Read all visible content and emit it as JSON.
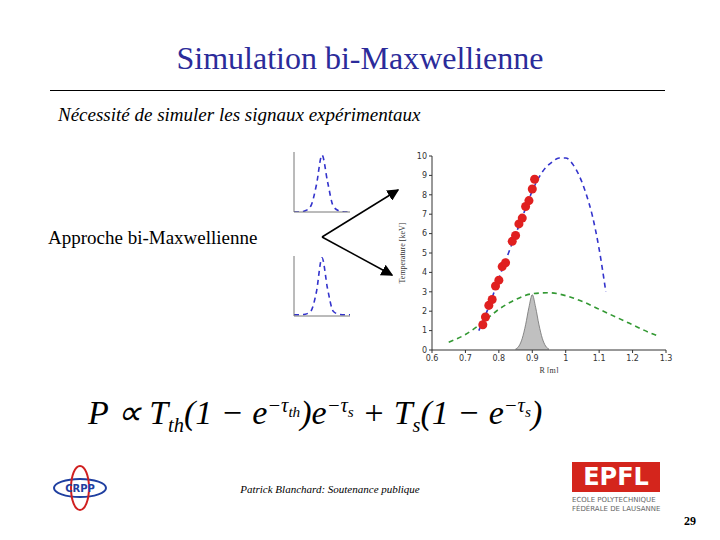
{
  "slide": {
    "title": "Simulation bi-Maxwellienne",
    "subtitle": "Nécessité de simuler les signaux expérimentaux",
    "label": "Approche bi-Maxwellienne",
    "formula": [
      {
        "base": "P ∝ T"
      },
      {
        "sub": "th"
      },
      {
        "base": "(1 − e"
      },
      {
        "sup": "−τ",
        "sup_sub": "th"
      },
      {
        "base": ")e"
      },
      {
        "sup": "−τ",
        "sup_sub": "s"
      },
      {
        "base": " + T"
      },
      {
        "sub": "s"
      },
      {
        "base": "(1 − e"
      },
      {
        "sup": "−τ",
        "sup_sub": "s"
      },
      {
        "base": ")"
      }
    ],
    "footer": "Patrick Blanchard: Soutenance publique",
    "page": "29",
    "logo_left": "CRPP",
    "logo_right": [
      "EPFL",
      "ECOLE POLYTECHNIQUE",
      "FÉDÉRALE DE LAUSANNE"
    ]
  },
  "chart_data": [
    {
      "type": "line",
      "x_label": "R [m]",
      "y_label": "Temperature [keV]",
      "xlim": [
        0.6,
        1.3
      ],
      "xticks": [
        0.6,
        0.7,
        0.8,
        0.9,
        1,
        1.1,
        1.2,
        1.3
      ],
      "ylim": [
        0,
        10
      ],
      "yticks": [
        0,
        1,
        2,
        3,
        4,
        5,
        6,
        7,
        8,
        9,
        10
      ],
      "series": [
        {
          "type": "area",
          "color": "#b0b0b0",
          "x": [
            0.85,
            0.86,
            0.87,
            0.88,
            0.89,
            0.9,
            0.91,
            0.92,
            0.93,
            0.94,
            0.95
          ],
          "values": [
            0.05,
            0.2,
            0.6,
            1.3,
            2.2,
            2.85,
            2.2,
            1.3,
            0.6,
            0.2,
            0.05
          ]
        },
        {
          "type": "line",
          "color": "#339933",
          "line_style": "dashed",
          "x": [
            0.65,
            0.7,
            0.75,
            0.8,
            0.85,
            0.9,
            0.95,
            1.0,
            1.05,
            1.1,
            1.15,
            1.2,
            1.25,
            1.28
          ],
          "values": [
            0.4,
            0.8,
            1.4,
            2.1,
            2.6,
            2.9,
            2.95,
            2.8,
            2.5,
            2.1,
            1.7,
            1.3,
            0.9,
            0.7
          ]
        },
        {
          "type": "line",
          "color": "#3333cc",
          "line_style": "dashed",
          "x": [
            0.74,
            0.76,
            0.78,
            0.8,
            0.82,
            0.84,
            0.86,
            0.88,
            0.9,
            0.92,
            0.94,
            0.96,
            0.98,
            1.0,
            1.02,
            1.04,
            1.06,
            1.08,
            1.1,
            1.12
          ],
          "values": [
            1.0,
            1.8,
            2.7,
            3.7,
            4.6,
            5.5,
            6.4,
            7.3,
            8.2,
            8.9,
            9.4,
            9.7,
            9.9,
            9.9,
            9.6,
            9.0,
            8.1,
            6.9,
            5.2,
            3.0
          ]
        },
        {
          "type": "scatter",
          "color": "#e02020",
          "marker": "circle",
          "x": [
            0.752,
            0.76,
            0.77,
            0.78,
            0.79,
            0.8,
            0.81,
            0.82,
            0.84,
            0.85,
            0.86,
            0.87,
            0.88,
            0.89,
            0.9,
            0.907
          ],
          "values": [
            1.3,
            1.7,
            2.3,
            2.6,
            3.3,
            3.6,
            4.3,
            4.5,
            5.6,
            5.9,
            6.5,
            6.8,
            7.4,
            7.7,
            8.3,
            8.8
          ]
        }
      ]
    },
    {
      "type": "line",
      "tick_labels": false,
      "xlim": [
        0,
        10
      ],
      "ylim": [
        0,
        1
      ],
      "series": [
        {
          "type": "line",
          "color": "#3333cc",
          "line_style": "dashed",
          "x": [
            0,
            1,
            2,
            3,
            4,
            5,
            6,
            7,
            8,
            9,
            10
          ],
          "values": [
            0,
            0,
            0.02,
            0.1,
            0.45,
            0.95,
            0.5,
            0.1,
            0.02,
            0,
            0
          ]
        }
      ]
    },
    {
      "type": "line",
      "tick_labels": false,
      "xlim": [
        0,
        10
      ],
      "ylim": [
        0,
        1
      ],
      "series": [
        {
          "type": "line",
          "color": "#3333cc",
          "line_style": "dashed",
          "x": [
            0,
            1,
            2,
            3,
            4,
            5,
            6,
            7,
            8,
            9,
            10
          ],
          "values": [
            0.02,
            0.02,
            0.03,
            0.08,
            0.4,
            0.97,
            0.45,
            0.08,
            0.03,
            0.02,
            0.02
          ]
        }
      ]
    }
  ]
}
